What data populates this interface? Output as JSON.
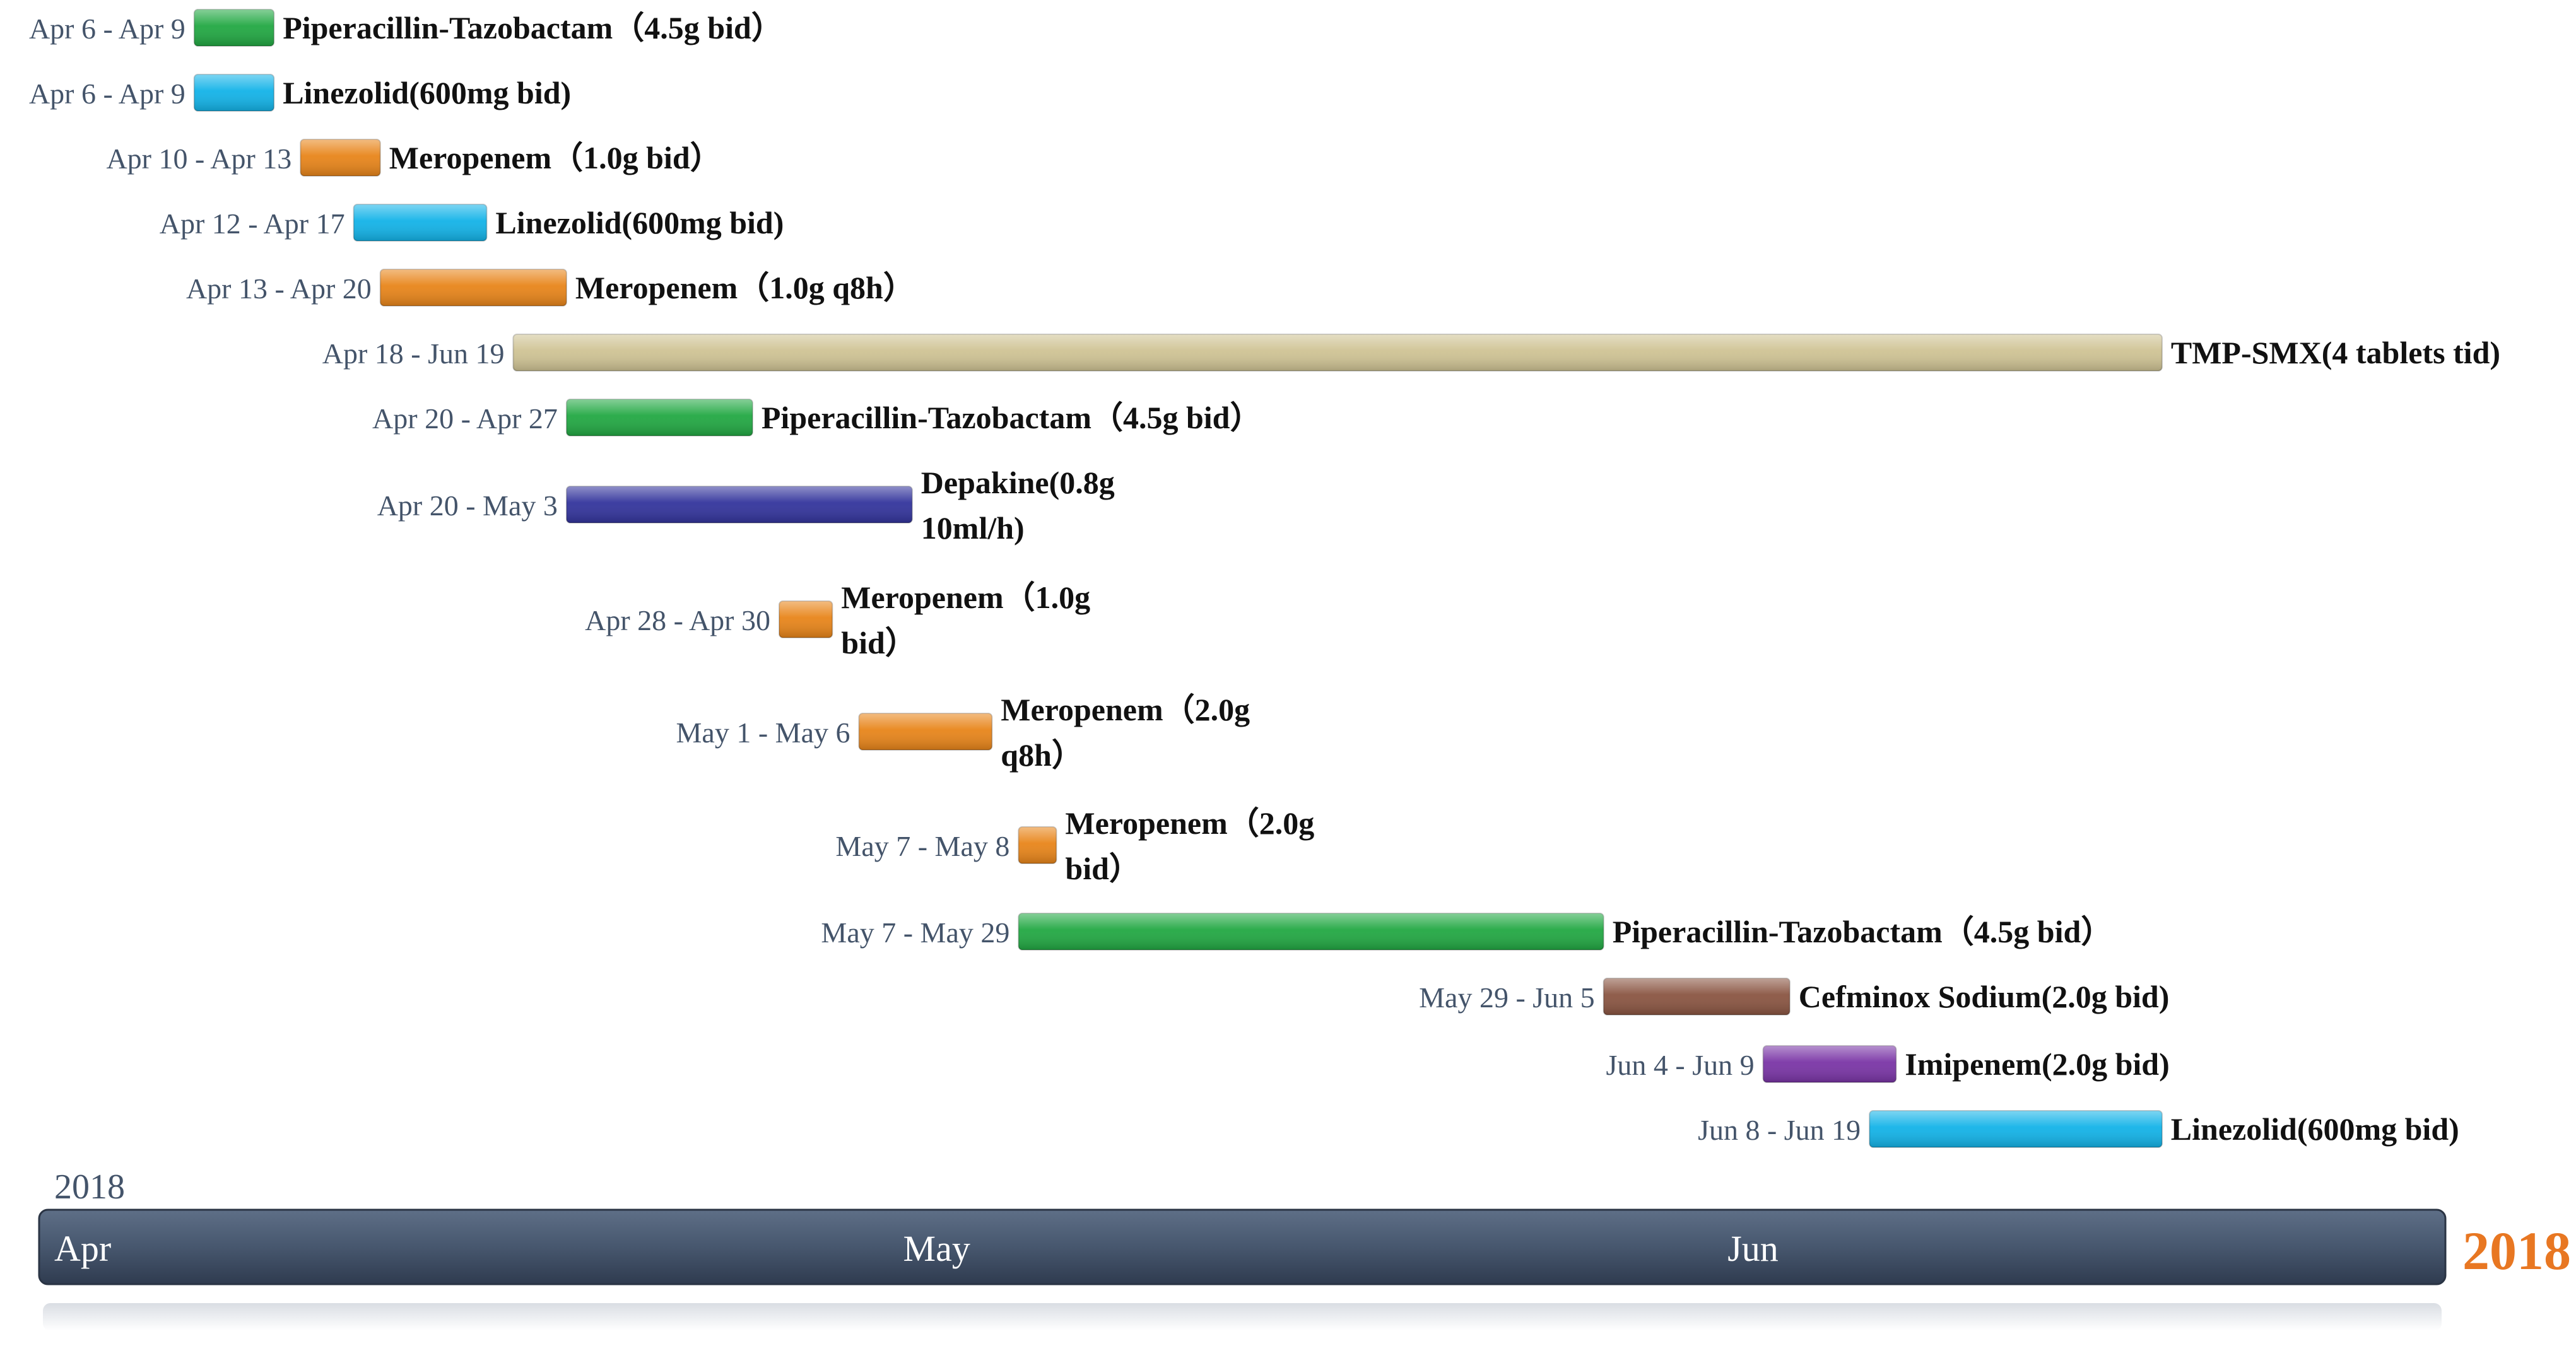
{
  "chart_data": {
    "type": "gantt",
    "year": "2018",
    "year_right": "2018",
    "year_right_color": "#e87722",
    "x_axis": {
      "months": [
        "Apr",
        "May",
        "Jun"
      ],
      "range": [
        "2018-04-01",
        "2018-06-30"
      ]
    },
    "tasks": [
      {
        "date_range": "Apr 6 - Apr 9",
        "label": "Piperacillin-Tazobactam（4.5g bid）",
        "label_lines": [
          "Piperacillin-Tazobactam（4.5g bid）"
        ],
        "start": "2018-04-06",
        "end": "2018-04-09",
        "color": "#22a843"
      },
      {
        "date_range": "Apr 6 - Apr 9",
        "label": "Linezolid(600mg bid)",
        "label_lines": [
          "Linezolid(600mg bid)"
        ],
        "start": "2018-04-06",
        "end": "2018-04-09",
        "color": "#13b3e8"
      },
      {
        "date_range": "Apr 10 - Apr 13",
        "label": "Meropenem（1.0g bid）",
        "label_lines": [
          "Meropenem（1.0g bid）"
        ],
        "start": "2018-04-10",
        "end": "2018-04-13",
        "color": "#e8851a"
      },
      {
        "date_range": "Apr 12 - Apr 17",
        "label": "Linezolid(600mg bid)",
        "label_lines": [
          "Linezolid(600mg bid)"
        ],
        "start": "2018-04-12",
        "end": "2018-04-17",
        "color": "#13b3e8"
      },
      {
        "date_range": "Apr 13 - Apr 20",
        "label": "Meropenem（1.0g q8h）",
        "label_lines": [
          "Meropenem（1.0g q8h）"
        ],
        "start": "2018-04-13",
        "end": "2018-04-20",
        "color": "#e8851a"
      },
      {
        "date_range": "Apr 18 - Jun 19",
        "label": "TMP-SMX(4 tablets tid)",
        "label_lines": [
          "TMP-SMX(4 tablets tid)"
        ],
        "start": "2018-04-18",
        "end": "2018-06-19",
        "color": "#cfc394"
      },
      {
        "date_range": "Apr 20 - Apr 27",
        "label": "Piperacillin-Tazobactam（4.5g bid）",
        "label_lines": [
          "Piperacillin-Tazobactam（4.5g bid）"
        ],
        "start": "2018-04-20",
        "end": "2018-04-27",
        "color": "#22a843"
      },
      {
        "date_range": "Apr 20 - May 3",
        "label": "Depakine(0.8g 10ml/h)",
        "label_lines": [
          "Depakine(0.8g",
          "10ml/h)"
        ],
        "start": "2018-04-20",
        "end": "2018-05-03",
        "color": "#33349c"
      },
      {
        "date_range": "Apr 28 - Apr 30",
        "label": "Meropenem（1.0g bid）",
        "label_lines": [
          "Meropenem（1.0g",
          "bid）"
        ],
        "start": "2018-04-28",
        "end": "2018-04-30",
        "color": "#e8851a"
      },
      {
        "date_range": "May 1 - May 6",
        "label": "Meropenem（2.0g q8h）",
        "label_lines": [
          "Meropenem（2.0g",
          "q8h）"
        ],
        "start": "2018-05-01",
        "end": "2018-05-06",
        "color": "#e8851a"
      },
      {
        "date_range": "May 7 - May 8",
        "label": "Meropenem（2.0g bid）",
        "label_lines": [
          "Meropenem（2.0g",
          "bid）"
        ],
        "start": "2018-05-07",
        "end": "2018-05-08",
        "color": "#e8851a"
      },
      {
        "date_range": "May 7 - May 29",
        "label": "Piperacillin-Tazobactam（4.5g bid）",
        "label_lines": [
          "Piperacillin-Tazobactam（4.5g bid）"
        ],
        "start": "2018-05-07",
        "end": "2018-05-29",
        "color": "#22a843"
      },
      {
        "date_range": "May 29 - Jun 5",
        "label": "Cefminox Sodium(2.0g bid)",
        "label_lines": [
          "Cefminox Sodium(2.0g bid)"
        ],
        "start": "2018-05-29",
        "end": "2018-06-05",
        "color": "#8a5542"
      },
      {
        "date_range": "Jun 4 - Jun 9",
        "label": "Imipenem(2.0g bid)",
        "label_lines": [
          "Imipenem(2.0g bid)"
        ],
        "start": "2018-06-04",
        "end": "2018-06-09",
        "color": "#7a35a6"
      },
      {
        "date_range": "Jun 8 - Jun 19",
        "label": "Linezolid(600mg bid)",
        "label_lines": [
          "Linezolid(600mg bid)"
        ],
        "start": "2018-06-08",
        "end": "2018-06-19",
        "color": "#13b3e8"
      }
    ]
  }
}
